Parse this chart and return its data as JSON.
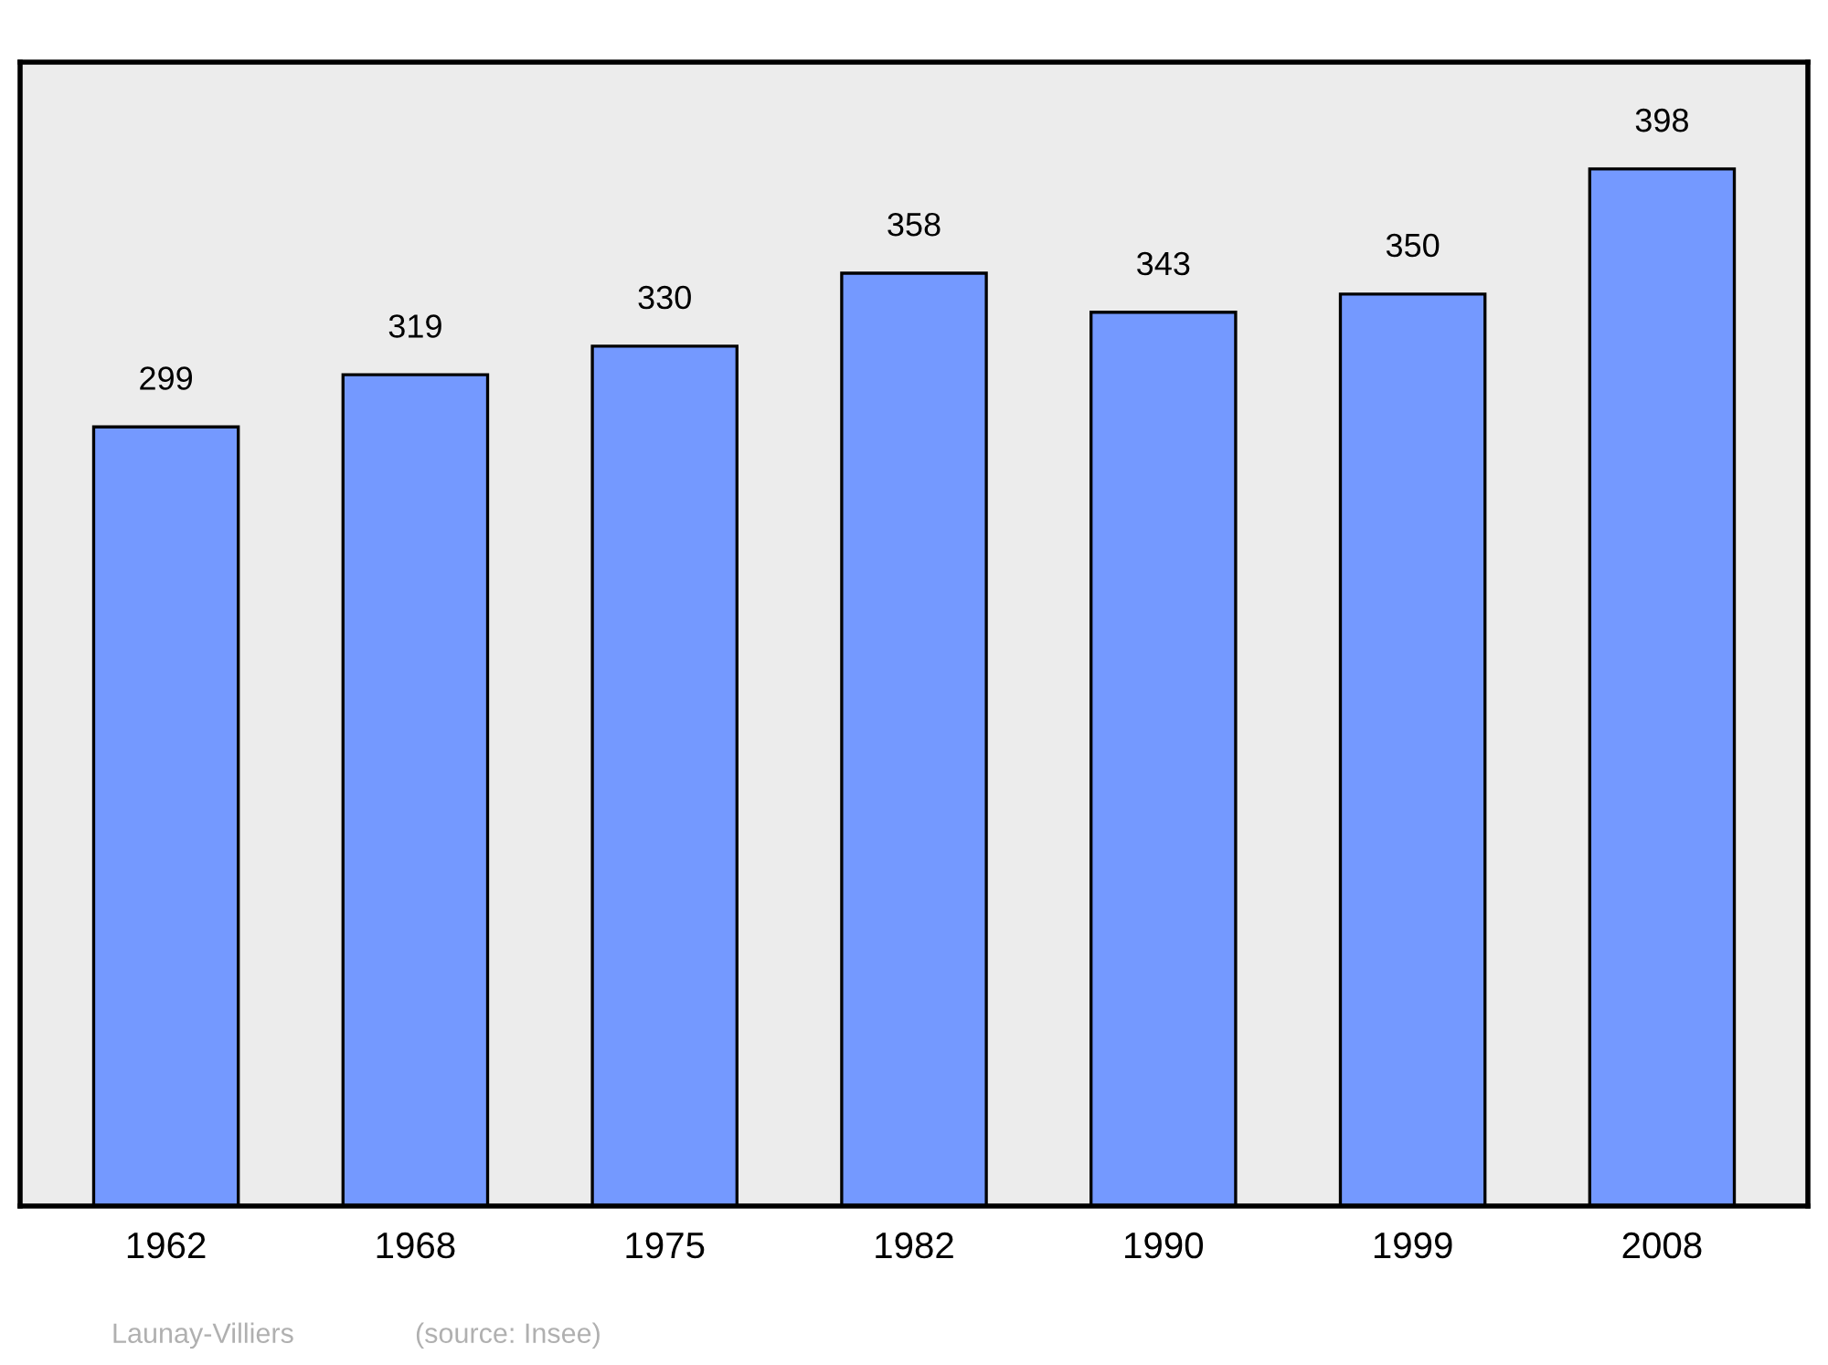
{
  "chart_data": {
    "type": "bar",
    "categories": [
      "1962",
      "1968",
      "1975",
      "1982",
      "1990",
      "1999",
      "2008"
    ],
    "values": [
      299,
      319,
      330,
      358,
      343,
      350,
      398
    ],
    "color": "#7499ff",
    "ylim": [
      0,
      439
    ],
    "data_labels": true,
    "grid": false,
    "legend": false,
    "tick_labels": "x",
    "annotations": [
      "Launay-Villiers",
      "(source: Insee)"
    ]
  }
}
